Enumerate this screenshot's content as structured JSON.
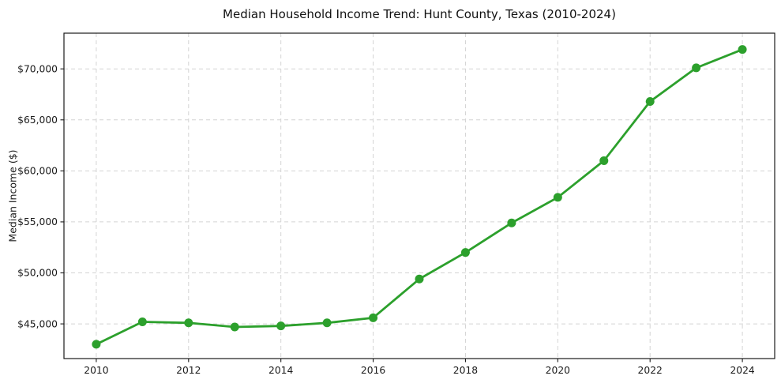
{
  "page": {
    "background": "#ffffff"
  },
  "chart_data": {
    "type": "line",
    "title": "Median Household Income Trend: Hunt County, Texas (2010-2024)",
    "xlabel": "",
    "ylabel": "Median Income ($)",
    "x": [
      2010,
      2011,
      2012,
      2013,
      2014,
      2015,
      2016,
      2017,
      2018,
      2019,
      2020,
      2021,
      2022,
      2023,
      2024
    ],
    "values": [
      43000,
      45200,
      45100,
      44700,
      44800,
      45100,
      45600,
      49400,
      52000,
      54900,
      57400,
      61000,
      66800,
      70100,
      71900
    ],
    "xlim": [
      2009.3,
      2024.7
    ],
    "ylim": [
      41600,
      73500
    ],
    "xticks": {
      "values": [
        2010,
        2012,
        2014,
        2016,
        2018,
        2020,
        2022,
        2024
      ],
      "labels": [
        "2010",
        "2012",
        "2014",
        "2016",
        "2018",
        "2020",
        "2022",
        "2024"
      ]
    },
    "yticks": {
      "values": [
        45000,
        50000,
        55000,
        60000,
        65000,
        70000
      ],
      "labels": [
        "$45,000",
        "$50,000",
        "$55,000",
        "$60,000",
        "$65,000",
        "$70,000"
      ]
    },
    "grid": {
      "visible": true,
      "style": "dashed"
    },
    "legend": "none",
    "marker": "circle",
    "colors": {
      "line": "#2ca02c",
      "marker": "#2ca02c",
      "grid": "#d4d4d4",
      "spine": "#1a1a1a",
      "tick": "#1a1a1a",
      "text": "#1a1a1a",
      "title": "#111111",
      "background": "#ffffff"
    }
  }
}
